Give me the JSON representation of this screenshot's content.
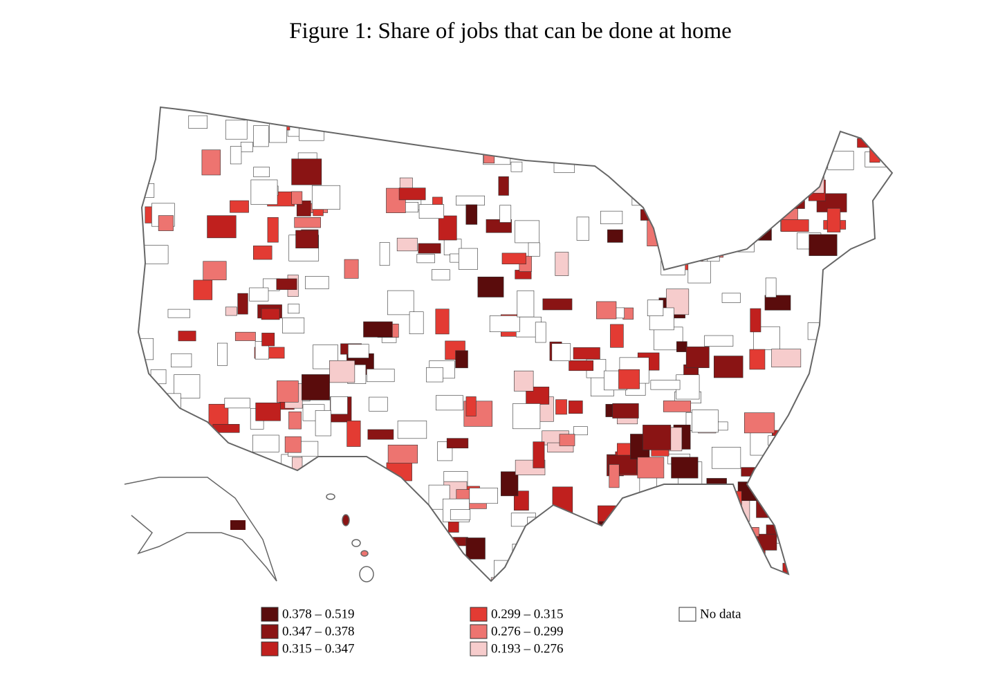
{
  "title": "Figure 1: Share of jobs that can be done at home",
  "legend": {
    "items": [
      {
        "label": "0.378 – 0.519",
        "color": "#5a0c0c"
      },
      {
        "label": "0.347 – 0.378",
        "color": "#8a1414"
      },
      {
        "label": "0.315 – 0.347",
        "color": "#c0201e"
      },
      {
        "label": "0.299 – 0.315",
        "color": "#e33b33"
      },
      {
        "label": "0.276 – 0.299",
        "color": "#ed7470"
      },
      {
        "label": "0.193 – 0.276",
        "color": "#f6cccc"
      },
      {
        "label": "No data",
        "color": "#ffffff"
      }
    ]
  }
}
